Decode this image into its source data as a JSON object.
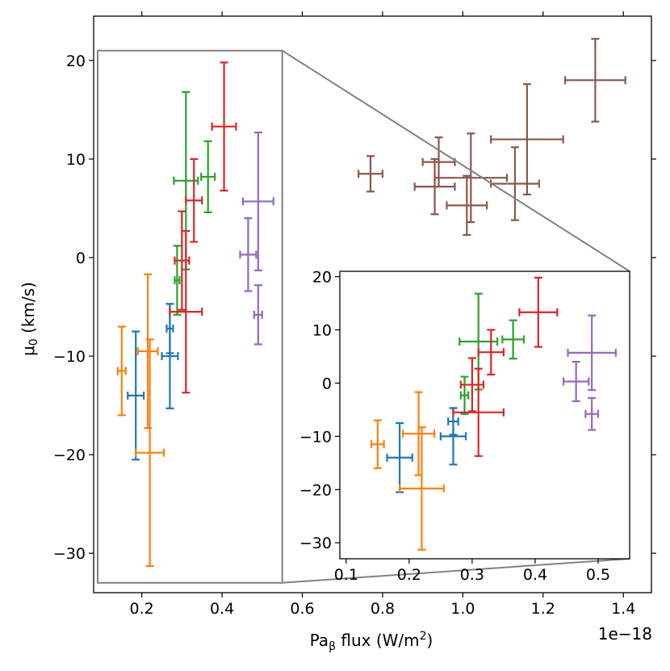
{
  "chart_data": [
    {
      "type": "scatter",
      "role": "main",
      "xlabel": "Pa",
      "xlabel_sub": "β",
      "xlabel_rest": " flux (W/m",
      "xlabel_sup": "2",
      "xlabel_end": ")",
      "ylabel": "μ",
      "ylabel_sub": "0",
      "ylabel_rest": " (km/s)",
      "offset_text": "1e−18",
      "xlim": [
        0.08,
        1.47
      ],
      "ylim": [
        -34,
        24.5
      ],
      "xticks": [
        0.2,
        0.4,
        0.6,
        0.8,
        1.0,
        1.2,
        1.4
      ],
      "xtick_labels": [
        "0.2",
        "0.4",
        "0.6",
        "0.8",
        "1.0",
        "1.2",
        "1.4"
      ],
      "yticks": [
        -30,
        -20,
        -10,
        0,
        10,
        20
      ],
      "ytick_labels": [
        "−30",
        "−20",
        "−10",
        "0",
        "10",
        "20"
      ],
      "zoom_box": {
        "x": [
          0.09,
          0.55
        ],
        "y": [
          -33,
          21
        ]
      },
      "series": [
        {
          "name": "blue",
          "color": "#1f77b4",
          "points": [
            {
              "x": 0.185,
              "xerr": 0.02,
              "y": -14.0,
              "yerr": 6.5
            },
            {
              "x": 0.27,
              "xerr": 0.02,
              "y": -10.0,
              "yerr": 5.3
            },
            {
              "x": 0.27,
              "xerr": 0.008,
              "y": -7.2,
              "yerr": 2.5
            }
          ]
        },
        {
          "name": "orange",
          "color": "#ff7f0e",
          "points": [
            {
              "x": 0.15,
              "xerr": 0.01,
              "y": -11.5,
              "yerr": 4.5
            },
            {
              "x": 0.215,
              "xerr": 0.025,
              "y": -9.5,
              "yerr": 7.8
            },
            {
              "x": 0.22,
              "xerr": 0.035,
              "y": -19.8,
              "yerr": 11.5
            }
          ]
        },
        {
          "name": "green",
          "color": "#2ca02c",
          "points": [
            {
              "x": 0.288,
              "xerr": 0.006,
              "y": -2.3,
              "yerr": 3.5
            },
            {
              "x": 0.31,
              "xerr": 0.03,
              "y": 7.8,
              "yerr": 9.0
            },
            {
              "x": 0.365,
              "xerr": 0.017,
              "y": 8.2,
              "yerr": 3.6
            }
          ]
        },
        {
          "name": "red",
          "color": "#d62728",
          "points": [
            {
              "x": 0.3,
              "xerr": 0.018,
              "y": -0.3,
              "yerr": 5.0
            },
            {
              "x": 0.33,
              "xerr": 0.02,
              "y": 5.8,
              "yerr": 4.2
            },
            {
              "x": 0.31,
              "xerr": 0.04,
              "y": -5.5,
              "yerr": 8.2
            },
            {
              "x": 0.405,
              "xerr": 0.03,
              "y": 13.3,
              "yerr": 6.5
            }
          ]
        },
        {
          "name": "purple",
          "color": "#9467bd",
          "points": [
            {
              "x": 0.465,
              "xerr": 0.02,
              "y": 0.3,
              "yerr": 3.7
            },
            {
              "x": 0.49,
              "xerr": 0.038,
              "y": 5.7,
              "yerr": 7.0
            },
            {
              "x": 0.49,
              "xerr": 0.01,
              "y": -5.8,
              "yerr": 3.0
            }
          ]
        },
        {
          "name": "brown",
          "color": "#8c564b",
          "points": [
            {
              "x": 0.77,
              "xerr": 0.03,
              "y": 8.5,
              "yerr": 1.8
            },
            {
              "x": 0.94,
              "xerr": 0.04,
              "y": 9.7,
              "yerr": 2.5
            },
            {
              "x": 0.93,
              "xerr": 0.05,
              "y": 7.2,
              "yerr": 2.8
            },
            {
              "x": 1.01,
              "xerr": 0.05,
              "y": 5.3,
              "yerr": 3.0
            },
            {
              "x": 1.02,
              "xerr": 0.09,
              "y": 8.1,
              "yerr": 4.5
            },
            {
              "x": 1.13,
              "xerr": 0.06,
              "y": 7.5,
              "yerr": 3.7
            },
            {
              "x": 1.16,
              "xerr": 0.09,
              "y": 12.0,
              "yerr": 5.6
            },
            {
              "x": 1.33,
              "xerr": 0.075,
              "y": 18.0,
              "yerr": 4.2
            }
          ]
        }
      ]
    },
    {
      "type": "scatter",
      "role": "inset",
      "xlim": [
        0.09,
        0.55
      ],
      "ylim": [
        -33,
        21
      ],
      "xticks": [
        0.1,
        0.2,
        0.3,
        0.4,
        0.5
      ],
      "xtick_labels": [
        "0.1",
        "0.2",
        "0.3",
        "0.4",
        "0.5"
      ],
      "yticks": [
        -30,
        -20,
        -10,
        0,
        10,
        20
      ],
      "ytick_labels": [
        "−30",
        "−20",
        "−10",
        "0",
        "10",
        "20"
      ],
      "series_source": "same as main plot, series with x < 0.55"
    }
  ]
}
